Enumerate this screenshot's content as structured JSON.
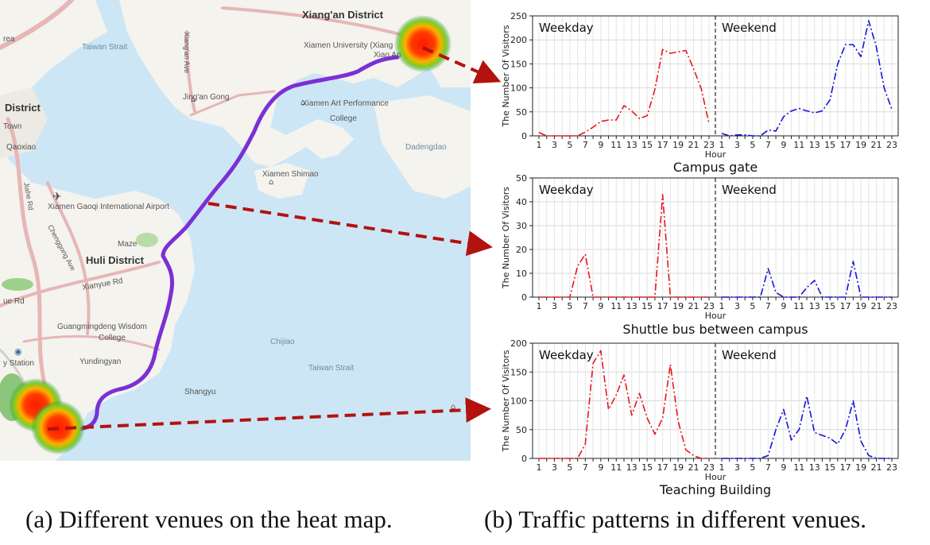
{
  "map": {
    "labels": [
      {
        "name": "map-label-xiangan-district",
        "text": "Xiang'an District",
        "cls": "dark"
      },
      {
        "name": "map-label-taiwan-strait-north",
        "text": "Taiwan Strait",
        "cls": "water"
      },
      {
        "name": "map-label-xiamen-university",
        "text": "Xiamen University (Xiang",
        "cls": ""
      },
      {
        "name": "map-label-xiao-an",
        "text": "Xiao An",
        "cls": ""
      },
      {
        "name": "map-label-xiangan-ave",
        "text": "Xiang'an Ave",
        "cls": ""
      },
      {
        "name": "map-label-jingan-gong",
        "text": "Jing'an Gong",
        "cls": ""
      },
      {
        "name": "map-label-art-performance",
        "text": "Xiamen Art Performance",
        "cls": ""
      },
      {
        "name": "map-label-college-1",
        "text": "College",
        "cls": ""
      },
      {
        "name": "map-label-district-left",
        "text": "District",
        "cls": "dark"
      },
      {
        "name": "map-label-town",
        "text": "Town",
        "cls": ""
      },
      {
        "name": "map-label-qiaoxiao",
        "text": "Qaoxiao",
        "cls": ""
      },
      {
        "name": "map-label-dadengdao",
        "text": "Dadengdao",
        "cls": "water"
      },
      {
        "name": "map-label-xiamen-shimao",
        "text": "Xiamen Shimao",
        "cls": ""
      },
      {
        "name": "map-label-airport",
        "text": "Xiamen Gaoqi International Airport",
        "cls": ""
      },
      {
        "name": "map-label-maze",
        "text": "Maze",
        "cls": ""
      },
      {
        "name": "map-label-chenggong",
        "text": "Chenggong Ave",
        "cls": ""
      },
      {
        "name": "map-label-huli-district",
        "text": "Huli District",
        "cls": "dark"
      },
      {
        "name": "map-label-xianyue-rd",
        "text": "Xianyue Rd",
        "cls": ""
      },
      {
        "name": "map-label-jiahe-rd",
        "text": "Jiahe Rd",
        "cls": ""
      },
      {
        "name": "map-label-guangmingdeng",
        "text": "Guangmingdeng Wisdom",
        "cls": ""
      },
      {
        "name": "map-label-college-2",
        "text": "College",
        "cls": ""
      },
      {
        "name": "map-label-yundingyan",
        "text": "Yundingyan",
        "cls": ""
      },
      {
        "name": "map-label-chijiao",
        "text": "Chijiao",
        "cls": "water"
      },
      {
        "name": "map-label-taiwan-strait-south",
        "text": "Taiwan Strait",
        "cls": "water"
      },
      {
        "name": "map-label-shangyu",
        "text": "Shangyu",
        "cls": ""
      },
      {
        "name": "map-label-station",
        "text": "y Station",
        "cls": ""
      },
      {
        "name": "map-label-rea",
        "text": "rea",
        "cls": ""
      },
      {
        "name": "map-label-ue-rd",
        "text": "ue Rd",
        "cls": ""
      }
    ]
  },
  "chart_data": [
    {
      "type": "line",
      "title": "Campus gate",
      "xlabel": "Hour",
      "ylabel": "The Number Of Visitors",
      "ylim": [
        0,
        250
      ],
      "yticks": [
        0,
        50,
        100,
        150,
        200,
        250
      ],
      "xticks": [
        "1",
        "3",
        "5",
        "7",
        "9",
        "11",
        "13",
        "15",
        "17",
        "19",
        "21",
        "23"
      ],
      "grid": true,
      "panels": [
        "Weekday",
        "Weekend"
      ],
      "series": [
        {
          "color": "#e8171b",
          "style": "dashdot",
          "values": [
            7,
            0,
            0,
            0,
            0,
            0,
            8,
            18,
            30,
            33,
            33,
            63,
            52,
            36,
            42,
            97,
            180,
            172,
            175,
            178,
            140,
            98,
            25
          ]
        },
        {
          "color": "#1515d6",
          "style": "dashdot",
          "values": [
            5,
            0,
            2,
            2,
            0,
            0,
            12,
            10,
            40,
            52,
            57,
            52,
            48,
            52,
            75,
            150,
            190,
            190,
            165,
            240,
            185,
            100,
            55
          ]
        }
      ]
    },
    {
      "type": "line",
      "title": "Shuttle bus between campus",
      "xlabel": "Hour",
      "ylabel": "The Number Of Visitors",
      "ylim": [
        0,
        50
      ],
      "yticks": [
        0,
        10,
        20,
        30,
        40,
        50
      ],
      "xticks": [
        "1",
        "3",
        "5",
        "7",
        "9",
        "11",
        "13",
        "15",
        "17",
        "19",
        "21",
        "23"
      ],
      "grid": true,
      "panels": [
        "Weekday",
        "Weekend"
      ],
      "series": [
        {
          "color": "#e8171b",
          "style": "dashdot",
          "values": [
            0,
            0,
            0,
            0,
            0,
            13,
            18,
            0,
            0,
            0,
            0,
            0,
            0,
            0,
            0,
            0,
            43,
            0,
            0,
            0,
            0,
            0,
            0
          ]
        },
        {
          "color": "#1515d6",
          "style": "dashdot",
          "values": [
            0,
            0,
            0,
            0,
            0,
            0,
            12,
            2,
            0,
            0,
            0,
            4,
            7,
            0,
            0,
            0,
            0,
            15,
            0,
            0,
            0,
            0,
            0
          ]
        }
      ]
    },
    {
      "type": "line",
      "title": "Teaching Building",
      "xlabel": "Hour",
      "ylabel": "The Number Of Visitors",
      "ylim": [
        0,
        200
      ],
      "yticks": [
        0,
        50,
        100,
        150,
        200
      ],
      "xticks": [
        "1",
        "3",
        "5",
        "7",
        "9",
        "11",
        "13",
        "15",
        "17",
        "19",
        "21",
        "23"
      ],
      "grid": true,
      "panels": [
        "Weekday",
        "Weekend"
      ],
      "series": [
        {
          "color": "#e8171b",
          "style": "dashdot",
          "values": [
            0,
            0,
            0,
            0,
            0,
            0,
            25,
            165,
            187,
            85,
            110,
            145,
            75,
            113,
            70,
            42,
            70,
            163,
            65,
            15,
            5,
            0,
            0
          ]
        },
        {
          "color": "#1515d6",
          "style": "dashdot",
          "values": [
            0,
            0,
            0,
            0,
            0,
            0,
            5,
            50,
            85,
            32,
            50,
            108,
            45,
            40,
            35,
            25,
            50,
            100,
            30,
            5,
            0,
            0,
            0
          ]
        }
      ]
    }
  ],
  "captions": {
    "a": "(a) Different venues on the heat map.",
    "b": "(b) Traffic patterns in different venues."
  }
}
